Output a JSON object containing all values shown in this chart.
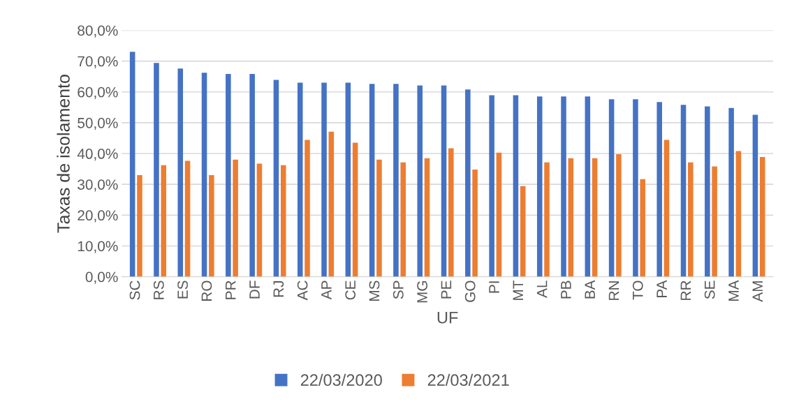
{
  "chart_data": {
    "type": "bar",
    "xlabel": "UF",
    "ylabel": "Taxas de isolamento",
    "categories": [
      "SC",
      "RS",
      "ES",
      "RO",
      "PR",
      "DF",
      "RJ",
      "AC",
      "AP",
      "CE",
      "MS",
      "SP",
      "MG",
      "PE",
      "GO",
      "PI",
      "MT",
      "AL",
      "PB",
      "BA",
      "RN",
      "TO",
      "PA",
      "RR",
      "SE",
      "MA",
      "AM"
    ],
    "series": [
      {
        "name": "22/03/2020",
        "color": "#4472c4",
        "values": [
          73.0,
          69.4,
          67.6,
          66.2,
          65.8,
          65.8,
          63.9,
          63.0,
          63.0,
          63.0,
          62.6,
          62.6,
          62.1,
          62.1,
          60.8,
          58.9,
          58.9,
          58.5,
          58.5,
          58.5,
          57.6,
          57.6,
          56.7,
          55.8,
          55.3,
          54.8,
          52.6
        ]
      },
      {
        "name": "22/03/2021",
        "color": "#ed7d31",
        "values": [
          33.0,
          36.2,
          37.6,
          33.0,
          38.0,
          36.7,
          36.2,
          44.4,
          47.1,
          43.5,
          38.0,
          37.1,
          38.5,
          41.7,
          34.8,
          40.3,
          29.4,
          37.1,
          38.5,
          38.5,
          39.8,
          31.7,
          44.4,
          37.1,
          35.8,
          40.8,
          38.9
        ]
      }
    ],
    "ylim": [
      0,
      80
    ],
    "yticks": [
      {
        "value": 0,
        "label": "0,0%"
      },
      {
        "value": 10,
        "label": "10,0%"
      },
      {
        "value": 20,
        "label": "20,0%"
      },
      {
        "value": 30,
        "label": "30,0%"
      },
      {
        "value": 40,
        "label": "40,0%"
      },
      {
        "value": 50,
        "label": "50,0%"
      },
      {
        "value": 60,
        "label": "60,0%"
      },
      {
        "value": 70,
        "label": "70,0%"
      },
      {
        "value": 80,
        "label": "80,0%"
      }
    ],
    "grid": "y",
    "legend": "bottom"
  }
}
